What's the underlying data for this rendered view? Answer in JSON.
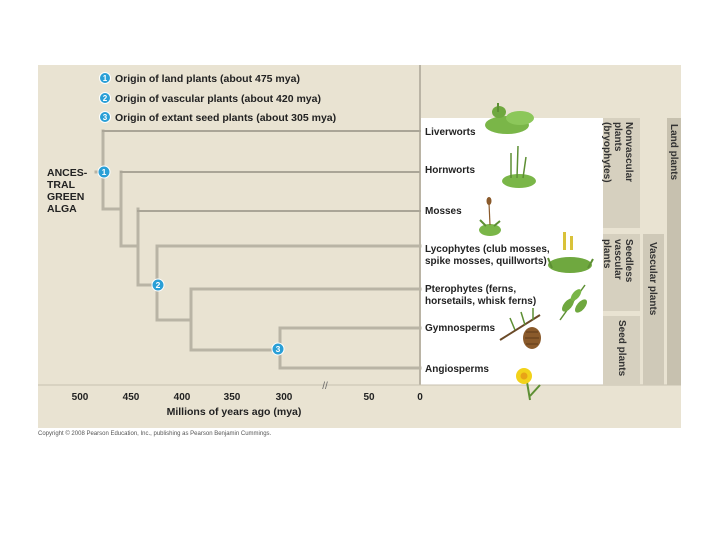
{
  "legend": [
    {
      "number": "1",
      "text": "Origin of land plants (about 475 mya)"
    },
    {
      "number": "2",
      "text": "Origin of vascular plants (about 420 mya)"
    },
    {
      "number": "3",
      "text": "Origin of extant seed plants (about 305 mya)"
    }
  ],
  "ancestor_label": [
    "ANCES-",
    "TRAL",
    "GREEN",
    "ALGA"
  ],
  "taxa": [
    {
      "name": [
        "Liverworts"
      ],
      "origin_mya": 475,
      "dashed": true
    },
    {
      "name": [
        "Hornworts"
      ],
      "origin_mya": 475,
      "dashed": true
    },
    {
      "name": [
        "Mosses"
      ],
      "origin_mya": 450,
      "dashed": true
    },
    {
      "name": [
        "Lycophytes (club mosses,",
        "spike mosses, quillworts)"
      ],
      "origin_mya": 420,
      "dashed": false
    },
    {
      "name": [
        "Pterophytes (ferns,",
        "horsetails, whisk ferns)"
      ],
      "origin_mya": 400,
      "dashed": false
    },
    {
      "name": [
        "Gymnosperms"
      ],
      "origin_mya": 305,
      "dashed": false
    },
    {
      "name": [
        "Angiosperms"
      ],
      "origin_mya": 305,
      "dashed": false
    }
  ],
  "nodes": [
    {
      "number": "1",
      "mya": 475
    },
    {
      "number": "2",
      "mya": 420
    },
    {
      "number": "3",
      "mya": 305
    }
  ],
  "groups": {
    "nonvascular": [
      "Nonvascular",
      "plants",
      "(bryophytes)"
    ],
    "seedless": [
      "Seedless",
      "vascular",
      "plants"
    ],
    "seed": [
      "Seed plants"
    ],
    "vascular": [
      "Vascular plants"
    ],
    "land": [
      "Land plants"
    ]
  },
  "axis": {
    "ticks": [
      "500",
      "450",
      "400",
      "350",
      "300",
      "50",
      "0"
    ],
    "break": "//",
    "label": "Millions of years ago (mya)"
  },
  "copyright": "Copyright © 2008 Pearson Education, Inc., publishing as Pearson Benjamin Cummings.",
  "colors": {
    "background": "#e9e3d2",
    "tree": "#b9b4a5",
    "node": "#2a9fd6",
    "bracket": "#cfc9b8",
    "plant_green": "#7ab648",
    "cone_brown": "#8a5a2b",
    "flower_yellow": "#f2d21a"
  }
}
